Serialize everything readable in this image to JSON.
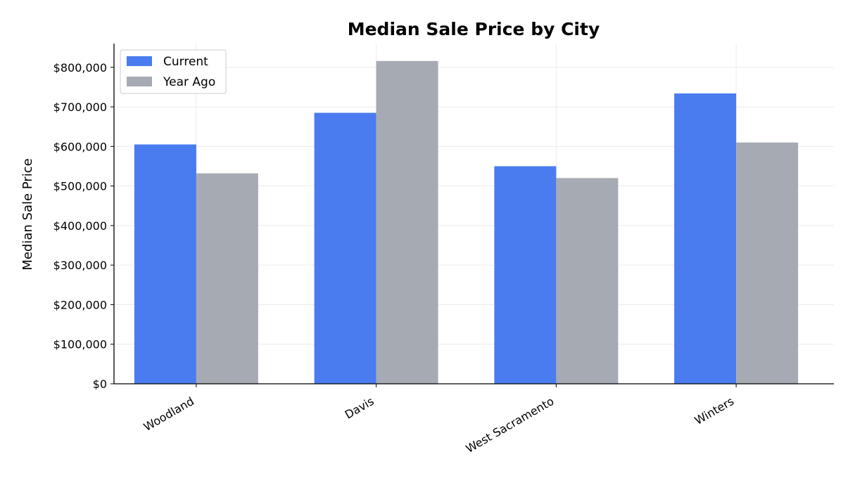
{
  "chart_data": {
    "type": "bar",
    "title": "Median Sale Price by City",
    "xlabel": "",
    "ylabel": "Median Sale Price",
    "categories": [
      "Woodland",
      "Davis",
      "West Sacramento",
      "Winters"
    ],
    "series": [
      {
        "name": "Current",
        "values": [
          605000,
          685000,
          550000,
          734000
        ],
        "color": "#4a7cf0"
      },
      {
        "name": "Year Ago",
        "values": [
          532000,
          816000,
          520000,
          610000
        ],
        "color": "#a6aab2"
      }
    ],
    "ylim": [
      0,
      860000
    ],
    "yticks": [
      0,
      100000,
      200000,
      300000,
      400000,
      500000,
      600000,
      700000,
      800000
    ],
    "ytick_labels": [
      "$0",
      "$100,000",
      "$200,000",
      "$300,000",
      "$400,000",
      "$500,000",
      "$600,000",
      "$700,000",
      "$800,000"
    ],
    "grid": true,
    "legend_position": "top-left"
  }
}
